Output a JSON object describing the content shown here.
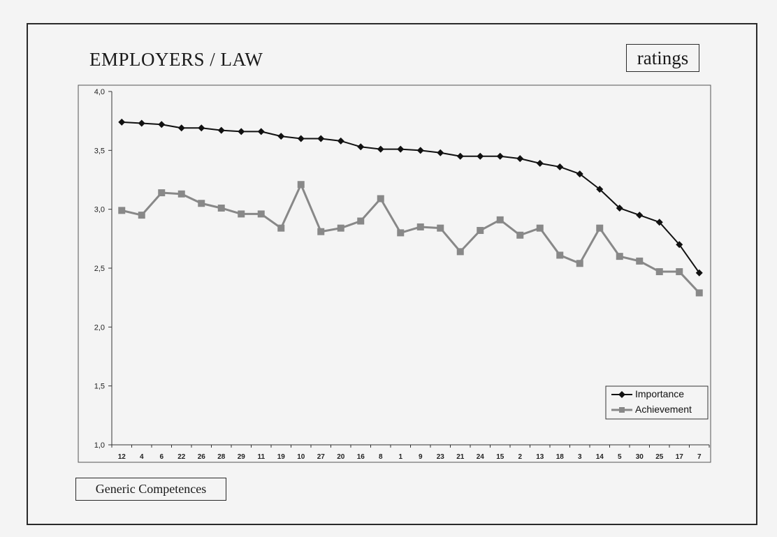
{
  "header": {
    "title": "EMPLOYERS / LAW",
    "tag": "ratings"
  },
  "footer": {
    "label": "Generic Competences"
  },
  "chart_data": {
    "type": "line",
    "categories": [
      "12",
      "4",
      "6",
      "22",
      "26",
      "28",
      "29",
      "11",
      "19",
      "10",
      "27",
      "20",
      "16",
      "8",
      "1",
      "9",
      "23",
      "21",
      "24",
      "15",
      "2",
      "13",
      "18",
      "3",
      "14",
      "5",
      "30",
      "25",
      "17",
      "7"
    ],
    "series": [
      {
        "name": "Importance",
        "color": "#111111",
        "marker": "diamond",
        "values": [
          3.74,
          3.73,
          3.72,
          3.69,
          3.69,
          3.67,
          3.66,
          3.66,
          3.62,
          3.6,
          3.6,
          3.58,
          3.53,
          3.51,
          3.51,
          3.5,
          3.48,
          3.45,
          3.45,
          3.45,
          3.43,
          3.39,
          3.36,
          3.3,
          3.17,
          3.01,
          2.95,
          2.89,
          2.7,
          2.46
        ]
      },
      {
        "name": "Achievement",
        "color": "#888888",
        "marker": "square",
        "values": [
          2.99,
          2.95,
          3.14,
          3.13,
          3.05,
          3.01,
          2.96,
          2.96,
          2.84,
          3.21,
          2.81,
          2.84,
          2.9,
          3.09,
          2.8,
          2.85,
          2.84,
          2.64,
          2.82,
          2.91,
          2.78,
          2.84,
          2.61,
          2.54,
          2.84,
          2.6,
          2.56,
          2.47,
          2.47,
          2.29
        ]
      }
    ],
    "yticks": [
      "1,0",
      "1,5",
      "2,0",
      "2,5",
      "3,0",
      "3,5",
      "4,0"
    ],
    "ylim": [
      1.0,
      4.0
    ],
    "grid": false,
    "legend": "bottom-right"
  }
}
